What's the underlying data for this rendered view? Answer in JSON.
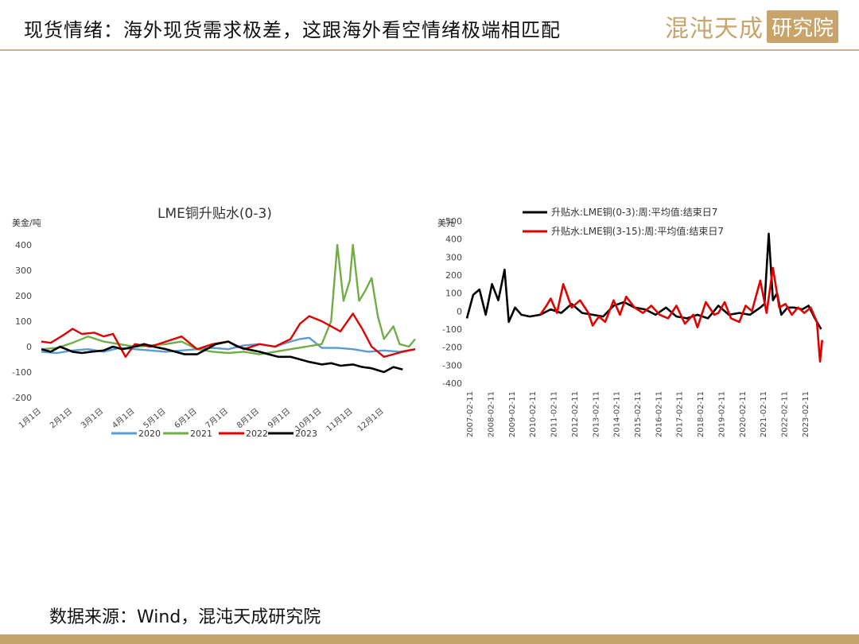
{
  "header": {
    "title": "现货情绪：海外现货需求极差，这跟海外看空情绪极端相匹配",
    "logo_text": "混沌天成",
    "logo_box": "研究院"
  },
  "footer": {
    "source": "数据来源：Wind，混沌天成研究院"
  },
  "colors": {
    "accent": "#c3a46c",
    "s2020": "#5b9bd5",
    "s2021": "#70ad47",
    "s2022": "#e00000",
    "s2023": "#000000"
  },
  "chart_data": [
    {
      "type": "line",
      "title": "LME铜升贴水(0-3)",
      "ylabel": "美金/吨",
      "ylim": [
        -200,
        400
      ],
      "yticks": [
        400,
        300,
        200,
        100,
        0,
        -100,
        -200
      ],
      "xlim": [
        1,
        13
      ],
      "xticks": [
        {
          "label": "1月1日",
          "value": 1
        },
        {
          "label": "2月1日",
          "value": 2
        },
        {
          "label": "3月1日",
          "value": 3
        },
        {
          "label": "4月1日",
          "value": 4
        },
        {
          "label": "5月1日",
          "value": 5
        },
        {
          "label": "6月1日",
          "value": 6
        },
        {
          "label": "7月1日",
          "value": 7
        },
        {
          "label": "8月1日",
          "value": 8
        },
        {
          "label": "9月1日",
          "value": 9
        },
        {
          "label": "10月1日",
          "value": 10
        },
        {
          "label": "11月1日",
          "value": 11
        },
        {
          "label": "12月1日",
          "value": 12
        }
      ],
      "legend_position": "bottom",
      "series": [
        {
          "name": "2020",
          "color": "#5b9bd5",
          "x": [
            1,
            1.5,
            2,
            2.5,
            3,
            3.5,
            4,
            4.5,
            5,
            5.5,
            6,
            6.5,
            7,
            7.5,
            8,
            8.5,
            9,
            9.3,
            9.6,
            10,
            10.5,
            11,
            11.5,
            12,
            12.5,
            13
          ],
          "y": [
            -20,
            -25,
            -15,
            -10,
            -20,
            -5,
            -10,
            -15,
            -20,
            -15,
            -10,
            -5,
            -10,
            5,
            10,
            0,
            20,
            30,
            35,
            -5,
            -5,
            -10,
            -20,
            -15,
            -20,
            -10
          ]
        },
        {
          "name": "2021",
          "color": "#70ad47",
          "x": [
            1,
            1.5,
            2,
            2.5,
            3,
            3.5,
            4,
            4.5,
            5,
            5.5,
            6,
            6.5,
            7,
            7.5,
            8,
            8.5,
            9,
            9.5,
            10,
            10.3,
            10.5,
            10.7,
            10.9,
            11,
            11.2,
            11.4,
            11.6,
            11.8,
            12,
            12.3,
            12.5,
            12.8,
            13
          ],
          "y": [
            -10,
            -5,
            15,
            40,
            20,
            10,
            0,
            5,
            10,
            20,
            -10,
            -20,
            -25,
            -20,
            -30,
            -20,
            -10,
            0,
            10,
            100,
            400,
            180,
            260,
            400,
            180,
            220,
            270,
            120,
            30,
            80,
            10,
            0,
            30
          ]
        },
        {
          "name": "2022",
          "color": "#e00000",
          "x": [
            1,
            1.3,
            1.7,
            2,
            2.3,
            2.7,
            3,
            3.3,
            3.7,
            4,
            4.5,
            5,
            5.5,
            6,
            6.5,
            7,
            7.5,
            8,
            8.5,
            9,
            9.3,
            9.6,
            10,
            10.3,
            10.6,
            11,
            11.3,
            11.6,
            12,
            12.3,
            12.6,
            13
          ],
          "y": [
            20,
            15,
            45,
            70,
            50,
            55,
            40,
            50,
            -40,
            10,
            0,
            20,
            40,
            -10,
            10,
            20,
            -10,
            10,
            0,
            30,
            90,
            120,
            100,
            80,
            60,
            130,
            70,
            0,
            -40,
            -30,
            -20,
            -10
          ]
        },
        {
          "name": "2023",
          "color": "#000000",
          "x": [
            1,
            1.3,
            1.6,
            2,
            2.3,
            2.6,
            3,
            3.3,
            3.6,
            4,
            4.3,
            4.6,
            5,
            5.3,
            5.6,
            6,
            6.3,
            6.6,
            7,
            7.3,
            7.6,
            8,
            8.3,
            8.6,
            9,
            9.3,
            9.6,
            10,
            10.3,
            10.6,
            11,
            11.3,
            11.6,
            12,
            12.3,
            12.6
          ],
          "y": [
            -10,
            -20,
            0,
            -20,
            -25,
            -20,
            -15,
            0,
            -10,
            0,
            10,
            0,
            -10,
            -20,
            -30,
            -30,
            -10,
            10,
            20,
            0,
            -10,
            -20,
            -30,
            -40,
            -40,
            -50,
            -60,
            -70,
            -65,
            -75,
            -70,
            -80,
            -85,
            -100,
            -80,
            -90
          ]
        }
      ]
    },
    {
      "type": "line",
      "ylabel": "美元",
      "ylim": [
        -400,
        500
      ],
      "yticks": [
        500,
        400,
        300,
        200,
        100,
        0,
        -100,
        -200,
        -300,
        -400
      ],
      "xlim": [
        2007.0,
        2024.0
      ],
      "xticks": [
        "2007-02-11",
        "2008-02-11",
        "2009-02-11",
        "2010-02-11",
        "2011-02-11",
        "2012-02-11",
        "2013-02-11",
        "2014-02-11",
        "2015-02-11",
        "2016-02-11",
        "2017-02-11",
        "2018-02-11",
        "2019-02-11",
        "2020-02-11",
        "2021-02-11",
        "2022-02-11",
        "2023-02-11"
      ],
      "legend_position": "top",
      "series": [
        {
          "name": "升贴水:LME铜(0-3):周:平均值:结束日7",
          "color": "#000000",
          "x": [
            2007.0,
            2007.3,
            2007.6,
            2007.9,
            2008.2,
            2008.5,
            2008.8,
            2009.0,
            2009.3,
            2009.6,
            2010.0,
            2010.5,
            2011.0,
            2011.5,
            2012.0,
            2012.5,
            2013.0,
            2013.5,
            2014.0,
            2014.5,
            2015.0,
            2015.5,
            2016.0,
            2016.5,
            2017.0,
            2017.5,
            2018.0,
            2018.5,
            2019.0,
            2019.5,
            2020.0,
            2020.5,
            2021.0,
            2021.2,
            2021.4,
            2021.6,
            2021.8,
            2022.0,
            2022.3,
            2022.6,
            2023.0,
            2023.3,
            2023.6,
            2023.9
          ],
          "y": [
            -40,
            90,
            120,
            -20,
            150,
            60,
            230,
            -60,
            20,
            -20,
            -30,
            -20,
            10,
            -10,
            40,
            -10,
            -20,
            -30,
            30,
            50,
            20,
            10,
            -20,
            20,
            -30,
            -40,
            -20,
            -40,
            30,
            -20,
            -10,
            -20,
            20,
            40,
            430,
            60,
            100,
            -20,
            20,
            20,
            10,
            30,
            -40,
            -100
          ]
        },
        {
          "name": "升贴水:LME铜(3-15):周:平均值:结束日7",
          "color": "#e00000",
          "x": [
            2010.5,
            2010.8,
            2011.0,
            2011.3,
            2011.6,
            2012.0,
            2012.4,
            2012.8,
            2013.0,
            2013.3,
            2013.6,
            2014.0,
            2014.3,
            2014.6,
            2015.0,
            2015.4,
            2015.8,
            2016.2,
            2016.6,
            2017.0,
            2017.4,
            2017.8,
            2018.0,
            2018.4,
            2018.8,
            2019.0,
            2019.3,
            2019.6,
            2020.0,
            2020.3,
            2020.6,
            2021.0,
            2021.3,
            2021.6,
            2021.9,
            2022.2,
            2022.5,
            2022.8,
            2023.1,
            2023.4,
            2023.7,
            2023.85,
            2023.95
          ],
          "y": [
            -20,
            30,
            70,
            -10,
            150,
            20,
            60,
            -10,
            -80,
            -30,
            -60,
            60,
            -20,
            80,
            20,
            -10,
            30,
            -20,
            -40,
            30,
            -70,
            -20,
            -90,
            50,
            -20,
            -10,
            50,
            -40,
            -60,
            30,
            0,
            170,
            -10,
            240,
            20,
            40,
            -20,
            20,
            -10,
            20,
            -60,
            -280,
            -160
          ]
        }
      ]
    }
  ]
}
